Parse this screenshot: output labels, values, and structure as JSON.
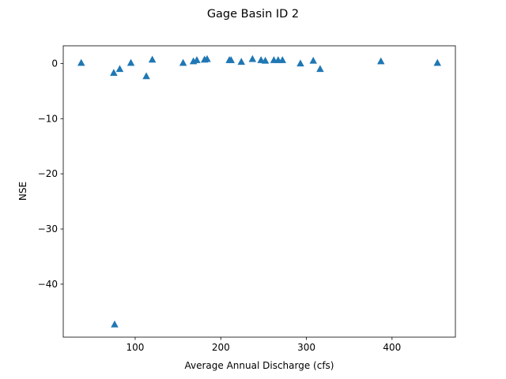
{
  "chart_data": {
    "type": "scatter",
    "title": "Gage Basin ID 2",
    "xlabel": "Average Annual Discharge (cfs)",
    "ylabel": "NSE",
    "xlim": [
      16,
      474
    ],
    "ylim": [
      -49.6,
      3.2
    ],
    "xticks": [
      100,
      200,
      300,
      400
    ],
    "yticks": [
      0,
      -10,
      -20,
      -30,
      -40
    ],
    "xtick_labels": [
      "100",
      "200",
      "300",
      "400"
    ],
    "ytick_labels": [
      "0",
      "−10",
      "−20",
      "−30",
      "−40"
    ],
    "grid": false,
    "marker": "triangle-up",
    "color": "#1f77b4",
    "series": [
      {
        "x": [
          37,
          75,
          76,
          82,
          95,
          113,
          120,
          156,
          168,
          172,
          181,
          184,
          210,
          212,
          224,
          237,
          247,
          252,
          262,
          267,
          272,
          293,
          308,
          316,
          387,
          453
        ],
        "y": [
          0.1,
          -1.7,
          -47.3,
          -1.0,
          0.1,
          -2.3,
          0.7,
          0.1,
          0.4,
          0.6,
          0.7,
          0.8,
          0.6,
          0.6,
          0.3,
          0.8,
          0.6,
          0.5,
          0.6,
          0.6,
          0.6,
          0.0,
          0.5,
          -1.0,
          0.4,
          0.1
        ]
      }
    ]
  }
}
